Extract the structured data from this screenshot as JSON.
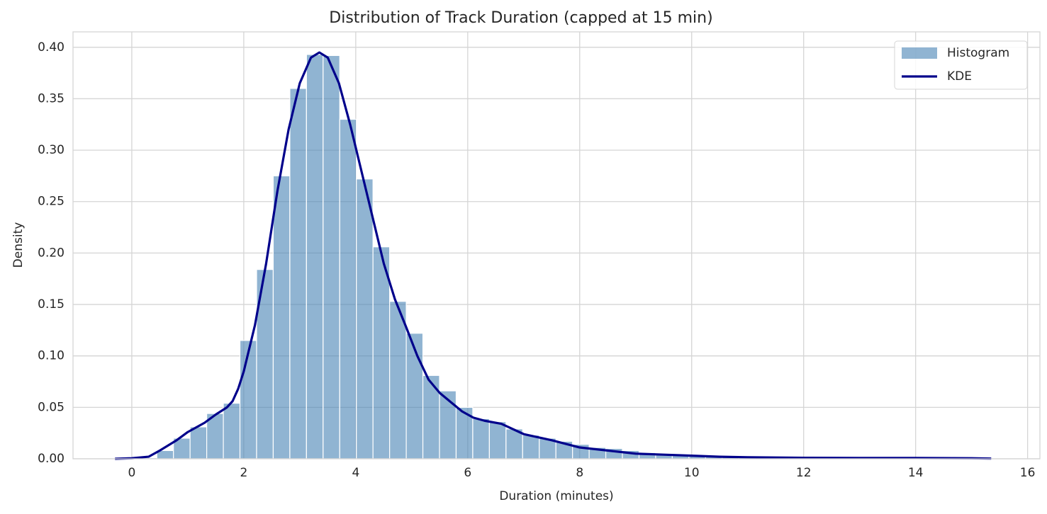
{
  "chart_data": {
    "type": "histogram",
    "title": "Distribution of Track Duration (capped at 15 min)",
    "xlabel": "Duration (minutes)",
    "ylabel": "Density",
    "bins": [
      0.15,
      0.447,
      0.744,
      1.041,
      1.338,
      1.635,
      1.932,
      2.229,
      2.526,
      2.823,
      3.12,
      3.417,
      3.714,
      4.011,
      4.308,
      4.605,
      4.902,
      5.199,
      5.496,
      5.793,
      6.09,
      6.387,
      6.684,
      6.981,
      7.278,
      7.575,
      7.872,
      8.169,
      8.466,
      8.763,
      9.06,
      9.357,
      9.654,
      9.951,
      10.248,
      10.545,
      10.842,
      11.139,
      11.436,
      11.733,
      12.03,
      12.327,
      12.624,
      12.921,
      13.218,
      13.515,
      13.812,
      14.109,
      14.406,
      14.703,
      15.0
    ],
    "series": [
      {
        "name": "Histogram",
        "type": "histogram",
        "color": "#4682b4",
        "values": [
          0.001,
          0.008,
          0.02,
          0.031,
          0.044,
          0.054,
          0.115,
          0.184,
          0.275,
          0.36,
          0.393,
          0.392,
          0.33,
          0.272,
          0.206,
          0.153,
          0.122,
          0.081,
          0.066,
          0.05,
          0.039,
          0.036,
          0.029,
          0.023,
          0.02,
          0.017,
          0.014,
          0.011,
          0.01,
          0.008,
          0.006,
          0.005,
          0.004,
          0.003,
          0.003,
          0.002,
          0.002,
          0.0015,
          0.001,
          0.001,
          0.0008,
          0.0007,
          0.0006,
          0.0005,
          0.0005,
          0.0004,
          0.0004,
          0.0003,
          0.0003,
          0.0003
        ]
      },
      {
        "name": "KDE",
        "type": "line",
        "color": "#00008b",
        "x": [
          -0.3,
          0,
          0.3,
          0.5,
          0.8,
          1.0,
          1.3,
          1.5,
          1.7,
          1.8,
          1.9,
          2.0,
          2.2,
          2.4,
          2.6,
          2.8,
          3.0,
          3.2,
          3.35,
          3.5,
          3.7,
          3.9,
          4.1,
          4.3,
          4.5,
          4.7,
          4.9,
          5.1,
          5.3,
          5.5,
          5.7,
          5.9,
          6.1,
          6.3,
          6.6,
          7.0,
          7.5,
          8.0,
          8.5,
          9.0,
          9.5,
          10.0,
          10.5,
          11,
          12,
          13,
          14,
          15,
          15.35
        ],
        "values": [
          0,
          0.0005,
          0.002,
          0.008,
          0.018,
          0.026,
          0.035,
          0.043,
          0.05,
          0.056,
          0.068,
          0.085,
          0.13,
          0.19,
          0.26,
          0.32,
          0.365,
          0.39,
          0.395,
          0.39,
          0.365,
          0.325,
          0.28,
          0.235,
          0.19,
          0.155,
          0.128,
          0.1,
          0.077,
          0.064,
          0.055,
          0.046,
          0.04,
          0.037,
          0.034,
          0.024,
          0.018,
          0.011,
          0.008,
          0.005,
          0.004,
          0.003,
          0.002,
          0.0015,
          0.001,
          0.0008,
          0.0008,
          0.0005,
          0.0002
        ]
      }
    ],
    "xlim": [
      -1.05,
      16.22
    ],
    "ylim": [
      0,
      0.415
    ],
    "xticks": [
      0,
      2,
      4,
      6,
      8,
      10,
      12,
      14,
      16
    ],
    "yticks": [
      {
        "value": 0,
        "label": "0.00"
      },
      0.05,
      {
        "value": 0.1,
        "label": "0.10"
      },
      0.15,
      {
        "value": 0.2,
        "label": "0.20"
      },
      0.25,
      {
        "value": 0.3,
        "label": "0.30"
      },
      0.35,
      {
        "value": 0.4,
        "label": "0.40"
      }
    ],
    "grid": true,
    "legend": "upper right"
  }
}
